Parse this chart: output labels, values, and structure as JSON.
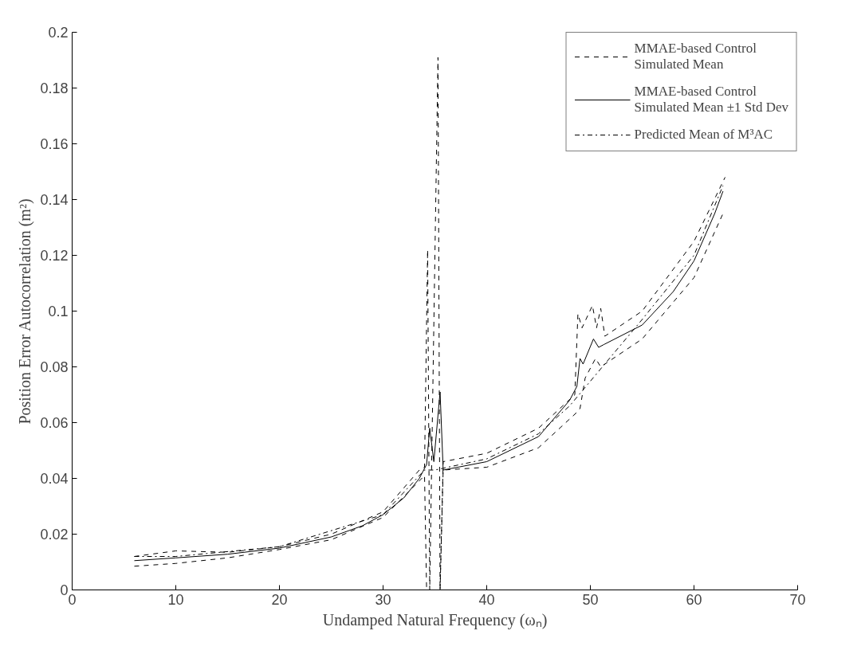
{
  "chart_data": {
    "type": "line",
    "xlabel": "Undamped Natural Frequency (ωₙ)",
    "ylabel": "Position Error Autocorrelation (m²)",
    "xlim": [
      0,
      70
    ],
    "ylim": [
      0,
      0.2
    ],
    "xticks": [
      0,
      10,
      20,
      30,
      40,
      50,
      60,
      70
    ],
    "yticks": [
      0,
      0.02,
      0.04,
      0.06,
      0.08,
      0.1,
      0.12,
      0.14,
      0.16,
      0.18,
      0.2
    ],
    "grid": false,
    "legend": "top right",
    "marker": "none",
    "series": [
      {
        "name": "MMAE-based Control Simulated Mean",
        "color": "#000000",
        "line_style": "dashed",
        "x": [
          6,
          10,
          15,
          20,
          25,
          30,
          33.5,
          34,
          34.3,
          34.5,
          35.3,
          35.5,
          35.8,
          40,
          45,
          48.5,
          48.8,
          49.2,
          50.2,
          50.6,
          51,
          51.4,
          55,
          60,
          63
        ],
        "values": [
          0.012,
          0.014,
          0.0135,
          0.0155,
          0.02,
          0.028,
          0.043,
          0.044,
          0.122,
          0,
          0.191,
          0,
          0.046,
          0.049,
          0.058,
          0.07,
          0.099,
          0.094,
          0.102,
          0.094,
          0.101,
          0.091,
          0.1,
          0.125,
          0.148
        ]
      },
      {
        "name": "MMAE-based Control Simulated Mean ±1 Std Dev",
        "color": "#000000",
        "line_style": "solid",
        "x": [
          6,
          10,
          15,
          20,
          25,
          28,
          30,
          32,
          33.5,
          34.2,
          34.5,
          34.9,
          35.5,
          35.8,
          40,
          45,
          48,
          48.7,
          49,
          49.3,
          50.3,
          50.8,
          51.3,
          55,
          58,
          60,
          62,
          62.8
        ],
        "values": [
          0.0105,
          0.0115,
          0.0128,
          0.015,
          0.019,
          0.023,
          0.027,
          0.033,
          0.04,
          0.045,
          0.058,
          0.046,
          0.071,
          0.043,
          0.046,
          0.055,
          0.068,
          0.073,
          0.083,
          0.081,
          0.09,
          0.087,
          0.088,
          0.095,
          0.107,
          0.118,
          0.135,
          0.143
        ]
      },
      {
        "color": "#000000",
        "line_style": "dashed",
        "x": [
          6,
          10,
          15,
          20,
          25,
          30,
          34,
          34.2,
          35.5,
          35.8,
          40,
          45,
          48.5,
          49,
          49.5,
          50.5,
          51,
          55,
          60,
          62.8
        ],
        "values": [
          0.0085,
          0.0095,
          0.0115,
          0.0145,
          0.018,
          0.026,
          0.041,
          0,
          0,
          0.043,
          0.044,
          0.051,
          0.063,
          0.065,
          0.076,
          0.083,
          0.08,
          0.09,
          0.112,
          0.135
        ]
      },
      {
        "name": "Predicted Mean of M³AC",
        "color": "#000000",
        "line_style": "dashdot",
        "x": [
          6,
          10,
          20,
          30,
          34,
          35,
          40,
          45,
          48,
          55,
          60,
          62.8
        ],
        "values": [
          0.012,
          0.012,
          0.0155,
          0.027,
          0.043,
          0.043,
          0.047,
          0.056,
          0.066,
          0.097,
          0.12,
          0.145
        ]
      }
    ]
  }
}
